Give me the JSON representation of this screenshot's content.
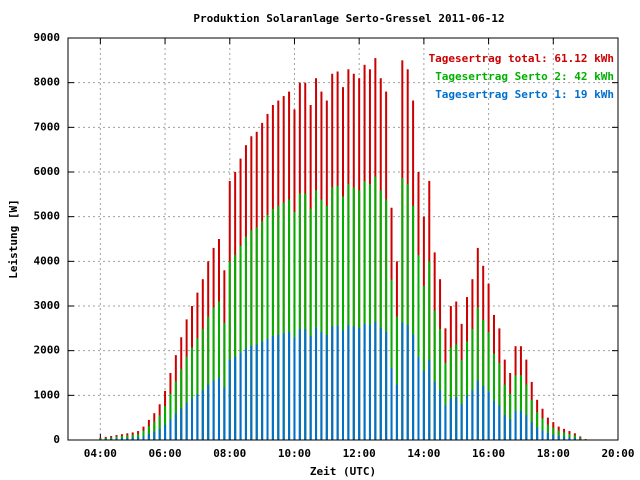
{
  "chart_data": {
    "type": "impulse",
    "title": "Produktion Solaranlage Serto-Gressel 2011-06-12",
    "xlabel": "Zeit (UTC)",
    "ylabel": "Leistung [W]",
    "xlim": [
      180,
      1200
    ],
    "xticks": [
      {
        "value": 240,
        "label": "04:00"
      },
      {
        "value": 360,
        "label": "06:00"
      },
      {
        "value": 480,
        "label": "08:00"
      },
      {
        "value": 600,
        "label": "10:00"
      },
      {
        "value": 720,
        "label": "12:00"
      },
      {
        "value": 840,
        "label": "14:00"
      },
      {
        "value": 960,
        "label": "16:00"
      },
      {
        "value": 1080,
        "label": "18:00"
      },
      {
        "value": 1200,
        "label": "20:00"
      }
    ],
    "ylim": [
      0,
      9000
    ],
    "yticks": [
      0,
      1000,
      2000,
      3000,
      4000,
      5000,
      6000,
      7000,
      8000,
      9000
    ],
    "grid": true,
    "legend": "top-right",
    "x": [
      240,
      250,
      260,
      270,
      280,
      290,
      300,
      310,
      320,
      330,
      340,
      350,
      360,
      370,
      380,
      390,
      400,
      410,
      420,
      430,
      440,
      450,
      460,
      470,
      480,
      490,
      500,
      510,
      520,
      530,
      540,
      550,
      560,
      570,
      580,
      590,
      600,
      610,
      620,
      630,
      640,
      650,
      660,
      670,
      680,
      690,
      700,
      710,
      720,
      730,
      740,
      750,
      760,
      770,
      780,
      790,
      800,
      810,
      820,
      830,
      840,
      850,
      860,
      870,
      880,
      890,
      900,
      910,
      920,
      930,
      940,
      950,
      960,
      970,
      980,
      990,
      1000,
      1010,
      1020,
      1030,
      1040,
      1050,
      1060,
      1070,
      1080,
      1090,
      1100,
      1110,
      1120,
      1130,
      1140
    ],
    "series": [
      {
        "name": "Tagesertrag total: 61.12 kWh",
        "color": "#cc0000",
        "values": [
          50,
          70,
          90,
          110,
          130,
          150,
          170,
          200,
          300,
          450,
          600,
          800,
          1100,
          1500,
          1900,
          2300,
          2700,
          3000,
          3300,
          3600,
          4000,
          4300,
          4500,
          3800,
          5800,
          6000,
          6300,
          6600,
          6800,
          6900,
          7100,
          7300,
          7500,
          7600,
          7700,
          7800,
          7400,
          8000,
          8000,
          7500,
          8100,
          7800,
          7600,
          8200,
          8250,
          7900,
          8300,
          8200,
          8100,
          8400,
          8300,
          8550,
          8100,
          7800,
          5200,
          4000,
          8500,
          8300,
          7600,
          6000,
          5000,
          5800,
          4200,
          3600,
          2500,
          3000,
          3100,
          2600,
          3200,
          3600,
          4300,
          3900,
          3500,
          2800,
          2500,
          1800,
          1500,
          2100,
          2100,
          1800,
          1300,
          900,
          700,
          500,
          400,
          300,
          250,
          200,
          150,
          80,
          20
        ]
      },
      {
        "name": "Tagesertrag Serto 2: 42 kWh",
        "color": "#00b000",
        "values": [
          35,
          48,
          62,
          76,
          90,
          104,
          117,
          138,
          207,
          310,
          414,
          552,
          759,
          1035,
          1311,
          1587,
          1863,
          2070,
          2277,
          2484,
          2760,
          2967,
          3105,
          2622,
          4002,
          4140,
          4347,
          4554,
          4692,
          4761,
          4899,
          5037,
          5175,
          5244,
          5313,
          5382,
          5106,
          5520,
          5520,
          5175,
          5589,
          5382,
          5244,
          5658,
          5693,
          5451,
          5727,
          5658,
          5589,
          5796,
          5727,
          5900,
          5589,
          5382,
          3588,
          2760,
          5865,
          5727,
          5244,
          4140,
          3450,
          4002,
          2898,
          2484,
          1725,
          2070,
          2139,
          1794,
          2208,
          2484,
          2967,
          2691,
          2415,
          1932,
          1725,
          1242,
          1035,
          1449,
          1449,
          1242,
          897,
          621,
          483,
          345,
          276,
          207,
          173,
          138,
          104,
          55,
          14
        ]
      },
      {
        "name": "Tagesertrag Serto 1: 19 kWh",
        "color": "#0070d0",
        "values": [
          15,
          22,
          28,
          34,
          40,
          46,
          53,
          62,
          93,
          140,
          186,
          248,
          341,
          465,
          589,
          713,
          837,
          930,
          1023,
          1116,
          1240,
          1333,
          1395,
          1178,
          1798,
          1860,
          1953,
          2046,
          2108,
          2139,
          2201,
          2263,
          2325,
          2356,
          2387,
          2418,
          2294,
          2480,
          2480,
          2325,
          2511,
          2418,
          2356,
          2542,
          2558,
          2449,
          2573,
          2542,
          2511,
          2604,
          2573,
          2650,
          2511,
          2418,
          1612,
          1240,
          2635,
          2573,
          2356,
          1860,
          1550,
          1798,
          1302,
          1116,
          775,
          930,
          961,
          806,
          992,
          1116,
          1333,
          1209,
          1085,
          868,
          775,
          558,
          465,
          651,
          651,
          558,
          403,
          279,
          217,
          155,
          124,
          93,
          77,
          62,
          46,
          25,
          6
        ]
      }
    ]
  }
}
